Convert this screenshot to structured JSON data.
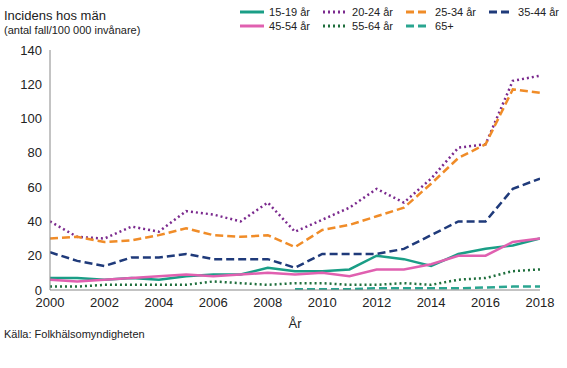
{
  "chart_data": {
    "type": "line",
    "title": "Incidens hos män",
    "subtitle": "(antal fall/100 000 invånare)",
    "x_label": "År",
    "annotations": [
      "Källa: Folkhälsomyndigheten"
    ],
    "x": [
      2000,
      2001,
      2002,
      2003,
      2004,
      2005,
      2006,
      2007,
      2008,
      2009,
      2010,
      2011,
      2012,
      2013,
      2014,
      2015,
      2016,
      2017,
      2018
    ],
    "xlim": [
      2000,
      2018
    ],
    "xticks": [
      2000,
      2002,
      2004,
      2006,
      2008,
      2010,
      2012,
      2014,
      2016,
      2018
    ],
    "ylim": [
      0,
      140
    ],
    "yticks": [
      0,
      20,
      40,
      60,
      80,
      100,
      120,
      140
    ],
    "grid": false,
    "legend": "top-right",
    "series": [
      {
        "name": "15-19 år",
        "color": "#1a9e86",
        "line_style": "solid",
        "values": [
          7,
          7,
          6,
          7,
          6,
          8,
          9,
          9,
          13,
          11,
          11,
          12,
          20,
          18,
          14,
          21,
          24,
          26,
          30
        ]
      },
      {
        "name": "20-24 år",
        "color": "#7b2a8e",
        "line_style": "dotted",
        "values": [
          40,
          31,
          30,
          37,
          34,
          46,
          44,
          40,
          51,
          34,
          41,
          48,
          59,
          51,
          65,
          83,
          85,
          122,
          125
        ]
      },
      {
        "name": "25-34 år",
        "color": "#f08c28",
        "line_style": "dashed",
        "values": [
          30,
          31,
          28,
          29,
          32,
          36,
          32,
          31,
          32,
          25,
          35,
          38,
          43,
          48,
          62,
          77,
          85,
          117,
          115
        ]
      },
      {
        "name": "35-44 år",
        "color": "#1f3a7a",
        "line_style": "dashed",
        "values": [
          22,
          17,
          14,
          19,
          19,
          21,
          18,
          18,
          18,
          13,
          21,
          21,
          21,
          24,
          32,
          40,
          40,
          59,
          65
        ]
      },
      {
        "name": "45-54 år",
        "color": "#e060b0",
        "line_style": "solid",
        "values": [
          6,
          5,
          6,
          7,
          8,
          9,
          8,
          9,
          10,
          9,
          10,
          8,
          12,
          12,
          15,
          20,
          20,
          28,
          30
        ]
      },
      {
        "name": "55-64 år",
        "color": "#1e6e3c",
        "line_style": "dotted",
        "values": [
          2,
          2,
          3,
          3,
          3,
          3,
          5,
          4,
          3,
          4,
          4,
          3,
          3,
          4,
          3,
          6,
          7,
          11,
          12
        ]
      },
      {
        "name": "65+",
        "color": "#2aa590",
        "line_style": "dashed",
        "values": [
          null,
          null,
          null,
          null,
          null,
          null,
          null,
          null,
          null,
          0.5,
          0.5,
          0.5,
          1,
          1,
          1,
          1,
          1.5,
          2,
          2
        ]
      }
    ]
  }
}
